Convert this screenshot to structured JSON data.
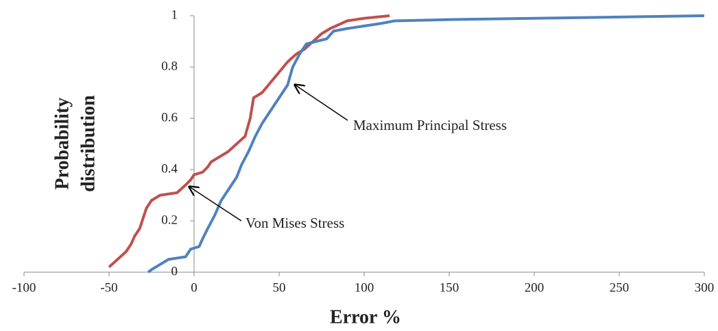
{
  "chart_data": {
    "type": "line",
    "xlabel": "Error %",
    "ylabel": [
      "Probability",
      "distribution"
    ],
    "xlim": [
      -100,
      300
    ],
    "xticks": [
      -100,
      -50,
      0,
      50,
      100,
      150,
      200,
      250,
      300
    ],
    "ylim": [
      0,
      1
    ],
    "yticks": [
      0,
      0.2,
      0.4,
      0.6,
      0.8,
      1
    ],
    "series": [
      {
        "color": "#c0504d",
        "x": [
          -50,
          -45,
          -40,
          -37,
          -35,
          -32,
          -30,
          -28,
          -25,
          -20,
          -10,
          -5,
          -2,
          0,
          5,
          8,
          10,
          15,
          20,
          25,
          30,
          33,
          35,
          40,
          45,
          50,
          55,
          60,
          65,
          70,
          75,
          80,
          90,
          100,
          115
        ],
        "values": [
          0.02,
          0.05,
          0.08,
          0.11,
          0.14,
          0.17,
          0.21,
          0.25,
          0.28,
          0.3,
          0.31,
          0.34,
          0.36,
          0.38,
          0.39,
          0.41,
          0.43,
          0.45,
          0.47,
          0.5,
          0.53,
          0.6,
          0.68,
          0.7,
          0.74,
          0.78,
          0.82,
          0.85,
          0.87,
          0.9,
          0.93,
          0.95,
          0.98,
          0.99,
          1
        ]
      },
      {
        "color": "#4f81bd",
        "x": [
          -27,
          -25,
          -20,
          -15,
          -5,
          -2,
          3,
          5,
          8,
          12,
          16,
          20,
          25,
          28,
          32,
          36,
          40,
          45,
          50,
          55,
          58,
          62,
          66,
          72,
          78,
          82,
          90,
          100,
          110,
          118,
          150,
          200,
          250,
          300
        ],
        "values": [
          0,
          0.01,
          0.03,
          0.05,
          0.06,
          0.09,
          0.1,
          0.13,
          0.17,
          0.22,
          0.28,
          0.32,
          0.37,
          0.42,
          0.47,
          0.53,
          0.58,
          0.63,
          0.68,
          0.73,
          0.8,
          0.85,
          0.89,
          0.9,
          0.91,
          0.94,
          0.95,
          0.96,
          0.97,
          0.98,
          0.985,
          0.99,
          0.995,
          1
        ]
      }
    ],
    "annotations": [
      "Maximum Principal Stress",
      "Von Mises Stress"
    ]
  }
}
